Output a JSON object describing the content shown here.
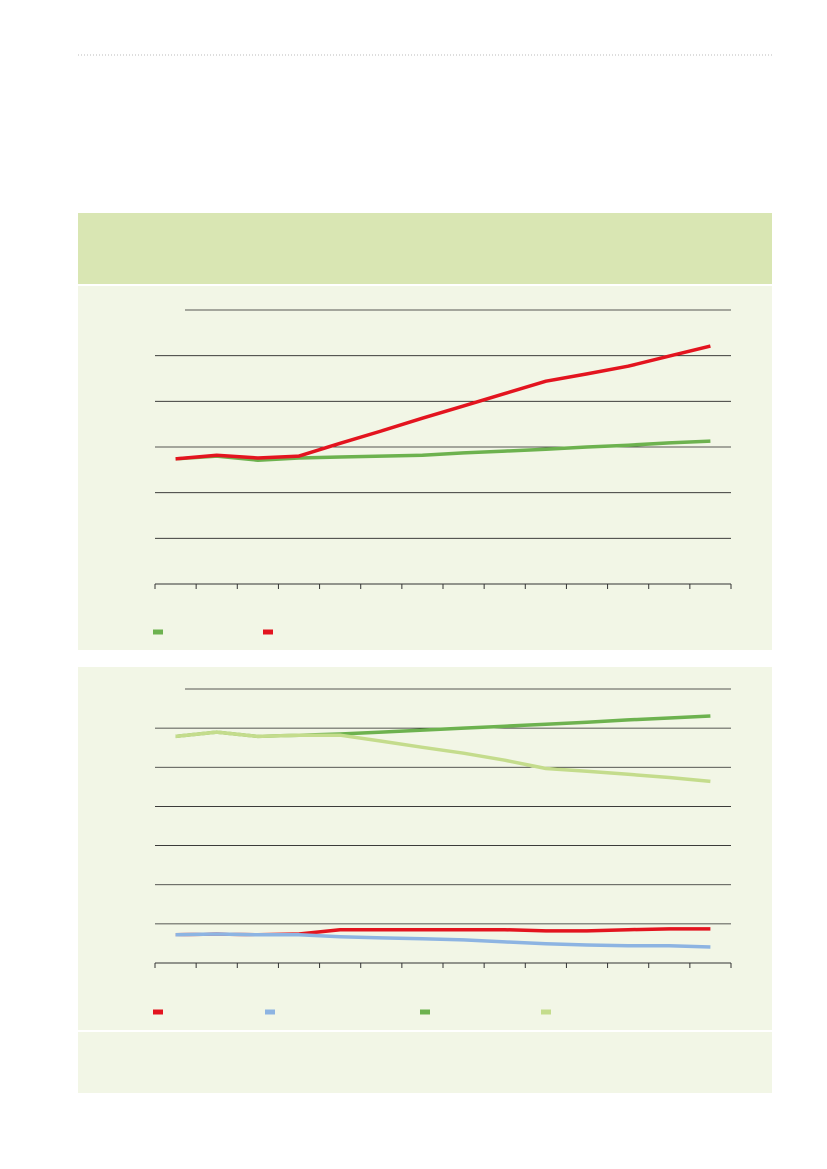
{
  "chart_data": [
    {
      "type": "line",
      "categories": [
        null,
        null,
        null,
        null,
        null,
        null,
        null,
        null,
        null,
        null,
        null,
        null,
        null,
        null
      ],
      "ylim": [
        0,
        6
      ],
      "yticks": [
        0,
        1,
        2,
        3,
        4,
        5,
        6
      ],
      "grid": true,
      "series": [
        {
          "color": "#6db24f",
          "values": [
            2.74,
            2.8,
            2.71,
            2.76,
            2.78,
            2.8,
            2.82,
            2.87,
            2.91,
            2.95,
            3.0,
            3.04,
            3.09,
            3.13
          ]
        },
        {
          "color": "#e3141f",
          "values": [
            2.74,
            2.82,
            2.76,
            2.8,
            3.08,
            3.35,
            3.63,
            3.9,
            4.17,
            4.44,
            4.6,
            4.77,
            4.99,
            5.21
          ]
        }
      ]
    },
    {
      "type": "line",
      "categories": [
        null,
        null,
        null,
        null,
        null,
        null,
        null,
        null,
        null,
        null,
        null,
        null,
        null,
        null
      ],
      "ylim": [
        0,
        7
      ],
      "yticks": [
        0,
        1,
        2,
        3,
        4,
        5,
        6,
        7
      ],
      "grid": true,
      "series": [
        {
          "color": "#e3141f",
          "values": [
            0.72,
            0.74,
            0.72,
            0.74,
            0.85,
            0.85,
            0.85,
            0.85,
            0.85,
            0.82,
            0.82,
            0.85,
            0.87,
            0.87
          ]
        },
        {
          "color": "#8db4e2",
          "values": [
            0.72,
            0.74,
            0.72,
            0.72,
            0.67,
            0.64,
            0.62,
            0.59,
            0.54,
            0.49,
            0.46,
            0.44,
            0.44,
            0.41
          ]
        },
        {
          "color": "#6db24f",
          "values": [
            5.79,
            5.9,
            5.79,
            5.82,
            5.85,
            5.9,
            5.95,
            6.0,
            6.05,
            6.1,
            6.15,
            6.21,
            6.26,
            6.31
          ]
        },
        {
          "color": "#c4dc8c",
          "values": [
            5.79,
            5.9,
            5.79,
            5.82,
            5.82,
            5.67,
            5.51,
            5.36,
            5.18,
            4.97,
            4.9,
            4.82,
            4.74,
            4.64
          ]
        }
      ]
    }
  ]
}
